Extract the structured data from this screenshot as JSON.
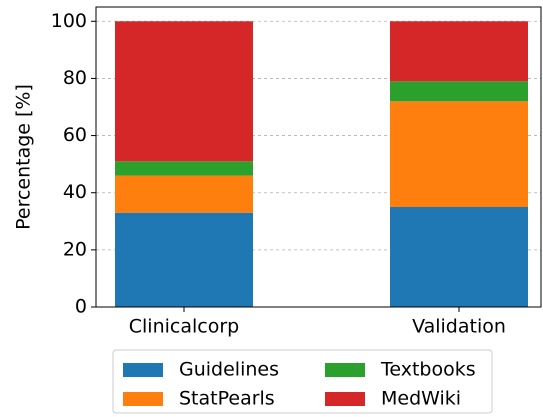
{
  "chart_data": {
    "type": "stacked_bar",
    "y_label": "Percentage [%]",
    "categories": [
      "Clinicalcorp",
      "Validation"
    ],
    "series": [
      {
        "name": "Guidelines",
        "color": "#1f77b4",
        "values": [
          33,
          35
        ]
      },
      {
        "name": "StatPearls",
        "color": "#ff7f0e",
        "values": [
          13,
          37
        ]
      },
      {
        "name": "Textbooks",
        "color": "#2ca02c",
        "values": [
          5,
          7
        ]
      },
      {
        "name": "MedWiki",
        "color": "#d62728",
        "values": [
          49,
          21
        ]
      }
    ],
    "ylim": [
      0,
      105
    ],
    "yticks": [
      0,
      20,
      40,
      60,
      80,
      100
    ],
    "grid": true
  }
}
